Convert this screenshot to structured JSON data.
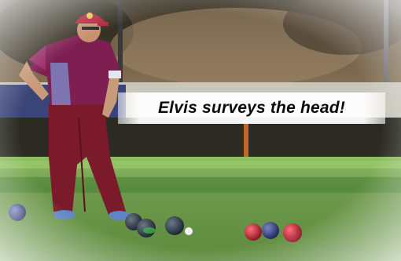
{
  "photo": {
    "caption": "Elvis surveys the head!",
    "subject": "lawn-bowls-player",
    "colors": {
      "shirt": "#7e1f52",
      "trousers": "#7a1a2a",
      "cap": "#b01f3b",
      "green": "#6f9a4c",
      "bench": "#2f3a6a"
    }
  }
}
